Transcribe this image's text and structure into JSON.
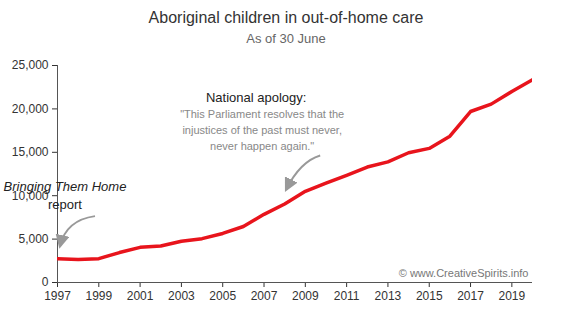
{
  "chart_data": {
    "type": "line",
    "title": "Aboriginal children in out-of-home care",
    "subtitle": "As of 30 June",
    "source": "© www.CreativeSpirits.info",
    "x": [
      1997,
      1998,
      1999,
      2000,
      2001,
      2002,
      2003,
      2004,
      2005,
      2006,
      2007,
      2008,
      2009,
      2010,
      2011,
      2012,
      2013,
      2014,
      2015,
      2016,
      2017,
      2018,
      2019,
      2020
    ],
    "values": [
      2750,
      2650,
      2750,
      3450,
      4050,
      4200,
      4750,
      5050,
      5650,
      6450,
      7850,
      9050,
      10500,
      11450,
      12350,
      13300,
      13900,
      14950,
      15450,
      16850,
      19700,
      20550,
      22000,
      23350
    ],
    "color": "#e8141c",
    "xlim": [
      1997,
      2020
    ],
    "xticks": [
      1997,
      1999,
      2001,
      2003,
      2005,
      2007,
      2009,
      2011,
      2013,
      2015,
      2017,
      2019
    ],
    "ylim": [
      0,
      25000
    ],
    "yticks": [
      0,
      {
        "value": 5000,
        "label": "5,000"
      },
      {
        "value": 10000,
        "label": "10,000"
      },
      {
        "value": 15000,
        "label": "15,000"
      },
      {
        "value": 20000,
        "label": "20,000"
      },
      {
        "value": 25000,
        "label": "25,000"
      }
    ],
    "grid": false,
    "annotations": [
      {
        "x": 1997,
        "lines": [
          "Bringing Them Home",
          "report"
        ]
      },
      {
        "x": 2008,
        "lines": [
          "National apology:",
          "\"This Parliament resolves that the",
          "injustices of the past must never,",
          "never happen again.\""
        ]
      }
    ]
  }
}
